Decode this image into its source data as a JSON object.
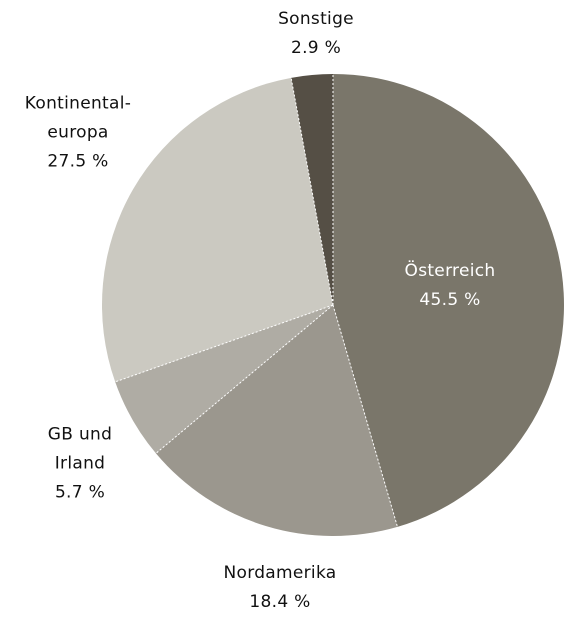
{
  "chart_data": {
    "type": "pie",
    "categories": [
      "Österreich",
      "Nordamerika",
      "GB und\nIrland",
      "Kontinental-\neuropa",
      "Sonstige"
    ],
    "values": [
      45.5,
      18.4,
      5.7,
      27.5,
      2.9
    ],
    "value_labels": [
      "45.5 %",
      "18.4 %",
      "5.7 %",
      "27.5 %",
      "2.9 %"
    ],
    "colors": [
      "#7a766a",
      "#9b978e",
      "#afaca4",
      "#cbc9c1",
      "#554f45"
    ]
  }
}
